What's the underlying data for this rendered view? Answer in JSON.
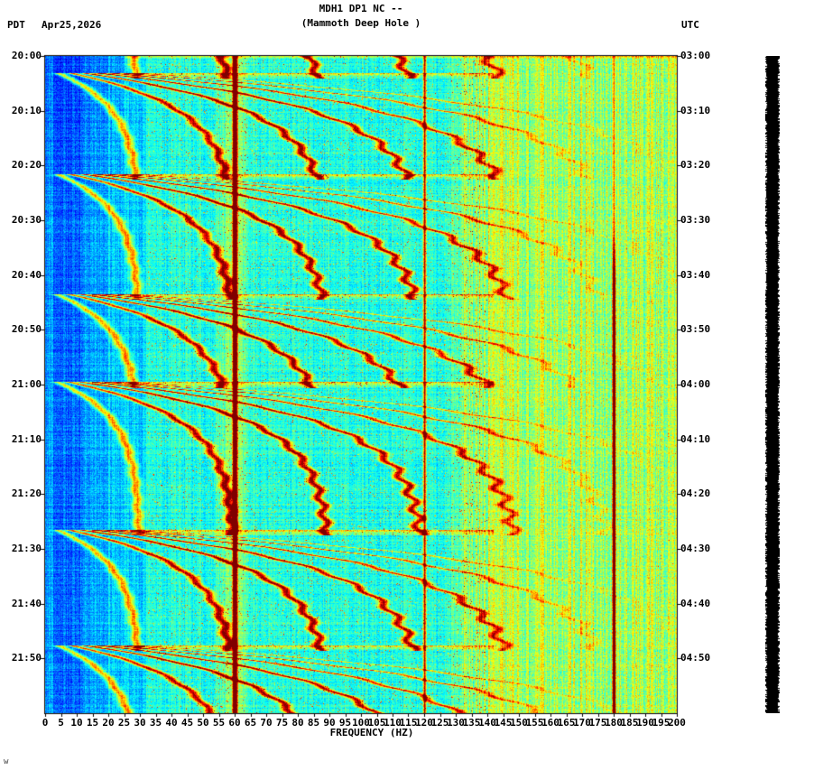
{
  "header": {
    "tz_left": "PDT",
    "date": "Apr25,2026",
    "title": "MDH1 DP1 NC --",
    "subtitle": "(Mammoth Deep Hole )",
    "tz_right": "UTC"
  },
  "footer": {
    "corner_mark": "w"
  },
  "chart_data": {
    "type": "heatmap",
    "subtype": "seismic-spectrogram",
    "title": "MDH1 DP1 NC --",
    "subtitle": "(Mammoth Deep Hole )",
    "xlabel": "FREQUENCY (HZ)",
    "colormap": "jet",
    "x_axis": {
      "unit": "Hz",
      "min": 0,
      "max": 200,
      "tick_step": 5,
      "tick_labels": [
        "0",
        "5",
        "10",
        "15",
        "20",
        "25",
        "30",
        "35",
        "40",
        "45",
        "50",
        "55",
        "60",
        "65",
        "70",
        "75",
        "80",
        "85",
        "90",
        "95",
        "100",
        "105",
        "110",
        "115",
        "120",
        "125",
        "130",
        "135",
        "140",
        "145",
        "150",
        "155",
        "160",
        "165",
        "170",
        "175",
        "180",
        "185",
        "190",
        "195",
        "200"
      ]
    },
    "y_axis_left": {
      "timezone": "PDT",
      "date": "Apr25,2026",
      "span_minutes": 120,
      "tick_labels": [
        "20:00",
        "20:10",
        "20:20",
        "20:30",
        "20:40",
        "20:50",
        "21:00",
        "21:10",
        "21:20",
        "21:30",
        "21:40",
        "21:50"
      ]
    },
    "y_axis_right": {
      "timezone": "UTC",
      "tick_labels": [
        "03:00",
        "03:10",
        "03:20",
        "03:30",
        "03:40",
        "03:50",
        "04:00",
        "04:10",
        "04:20",
        "04:30",
        "04:40",
        "04:50"
      ]
    },
    "features": {
      "powerline_harmonics_hz": [
        60,
        120,
        180
      ],
      "line_60hz_amp": 1.1,
      "line_120hz_amp": 0.55,
      "line_180hz_amp": 0.7,
      "fundamental_asymptote_hz": 30,
      "harmonics_count": 7,
      "gliding_harmonic_fans": [
        {
          "start_min": -16,
          "end_min": 4
        },
        {
          "start_min": 3,
          "end_min": 22.5
        },
        {
          "start_min": 21.5,
          "end_min": 44.5
        },
        {
          "start_min": 43.5,
          "end_min": 60.5
        },
        {
          "start_min": 59.5,
          "end_min": 87.5
        },
        {
          "start_min": 86.5,
          "end_min": 108.5
        },
        {
          "start_min": 107.5,
          "end_min": 122
        }
      ],
      "amplitude_strip_color": "#000000"
    },
    "palette": {
      "background": "#ffffff",
      "text": "#000000",
      "frame": "#000000",
      "line_60hz": "#800000"
    }
  }
}
